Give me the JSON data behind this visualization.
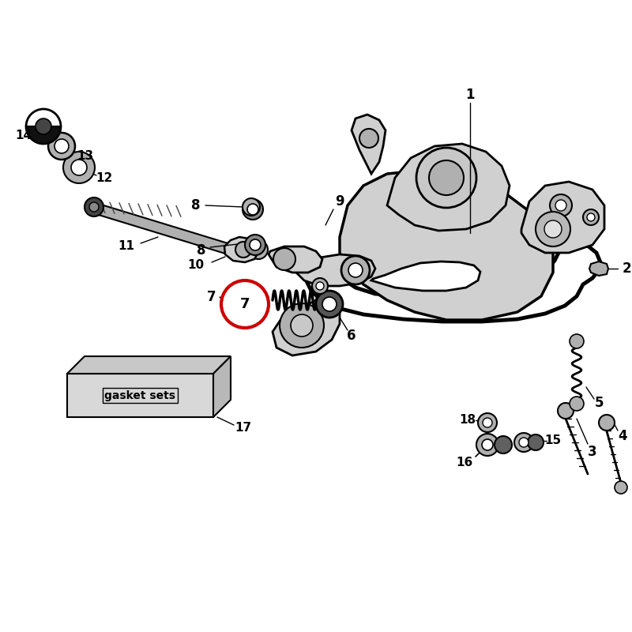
{
  "bg": "#ffffff",
  "lc": "#000000",
  "red": "#cc0000",
  "light_gray": "#d0d0d0",
  "mid_gray": "#b0b0b0",
  "dark_gray": "#606060",
  "gasket_text": "gasket sets",
  "figsize": [
    8.0,
    8.0
  ],
  "dpi": 100
}
